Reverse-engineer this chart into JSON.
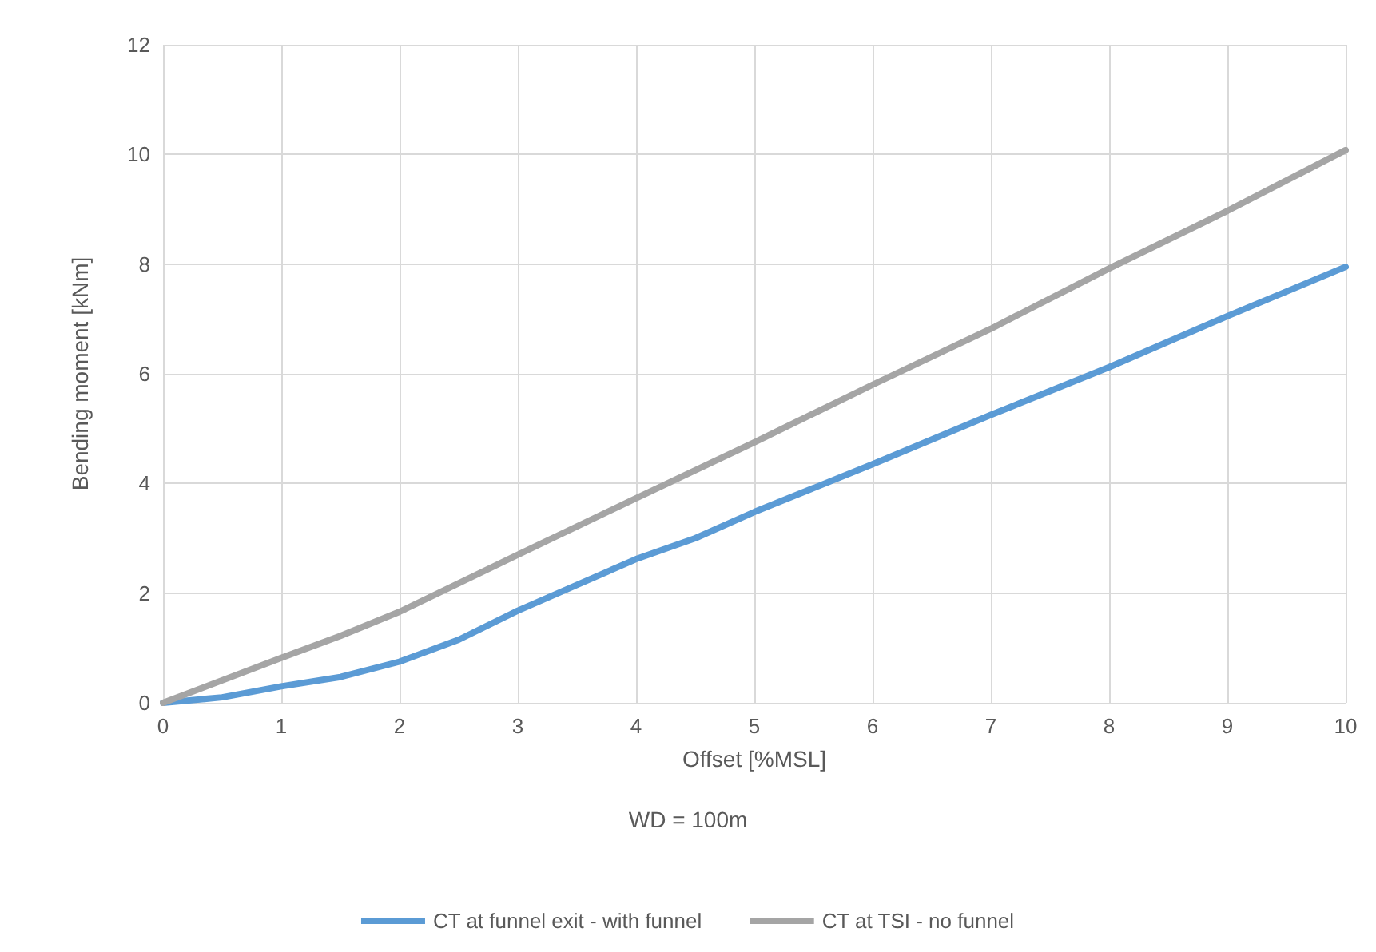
{
  "chart_data": {
    "type": "line",
    "xlabel": "Offset [%MSL]",
    "ylabel": "Bending moment [kNm]",
    "annotations": [
      "WD = 100m"
    ],
    "xlim": [
      0,
      10
    ],
    "xticks": [
      0,
      1,
      2,
      3,
      4,
      5,
      6,
      7,
      8,
      9,
      10
    ],
    "ylim": [
      0,
      12
    ],
    "yticks": [
      0,
      2,
      4,
      6,
      8,
      10,
      12
    ],
    "grid": true,
    "legend": "bottom",
    "marker": "none",
    "line_style": "solid",
    "series": [
      {
        "name": "CT at funnel exit - with funnel",
        "color": "#5b9bd5",
        "x": [
          0,
          0.5,
          1,
          1.5,
          2,
          2.5,
          3,
          3.5,
          4,
          4.5,
          5,
          6,
          7,
          8,
          9,
          10
        ],
        "values": [
          0,
          0.1,
          0.3,
          0.47,
          0.75,
          1.15,
          1.68,
          2.15,
          2.62,
          3.0,
          3.48,
          4.35,
          5.25,
          6.12,
          7.05,
          7.95
        ]
      },
      {
        "name": "CT at TSI - no funnel",
        "color": "#a5a5a5",
        "x": [
          0,
          1,
          1.5,
          2,
          3,
          4,
          5,
          6,
          7,
          8,
          9,
          10
        ],
        "values": [
          0,
          0.82,
          1.22,
          1.66,
          2.7,
          3.73,
          4.75,
          5.8,
          6.82,
          7.92,
          8.97,
          10.08
        ]
      }
    ]
  }
}
